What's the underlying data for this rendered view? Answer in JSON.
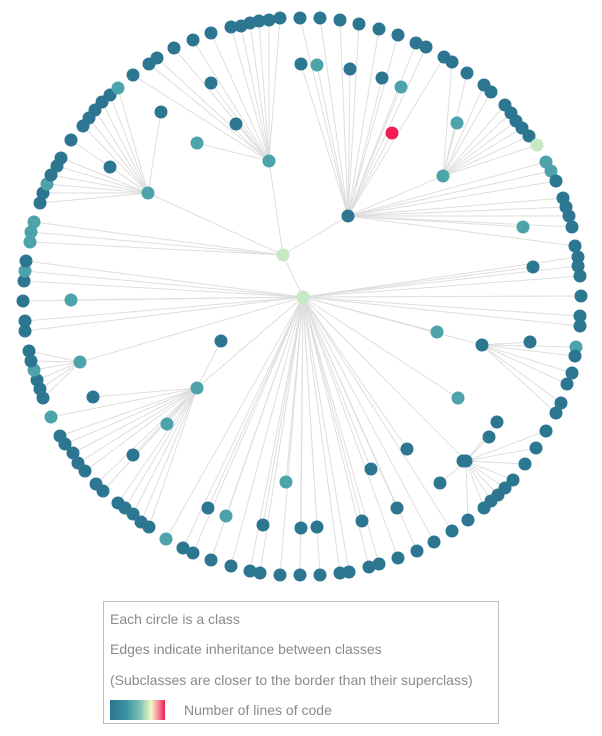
{
  "legend": {
    "line1": "Each circle is a class",
    "line2": "Edges indicate inheritance between classes",
    "line3": "(Subclasses are closer to the border than their superclass)",
    "scale_label": "Number of lines of code"
  },
  "colors": {
    "edge": "#dedede",
    "low": "#2c7691",
    "mid": "#4da3aa",
    "light": "#c6e8c4",
    "high": "#f21b54"
  },
  "hierarchy": {
    "root_classes": 2,
    "direct_subclasses_of_main_root": 20,
    "outlier_high_loc_nodes": 1
  }
}
